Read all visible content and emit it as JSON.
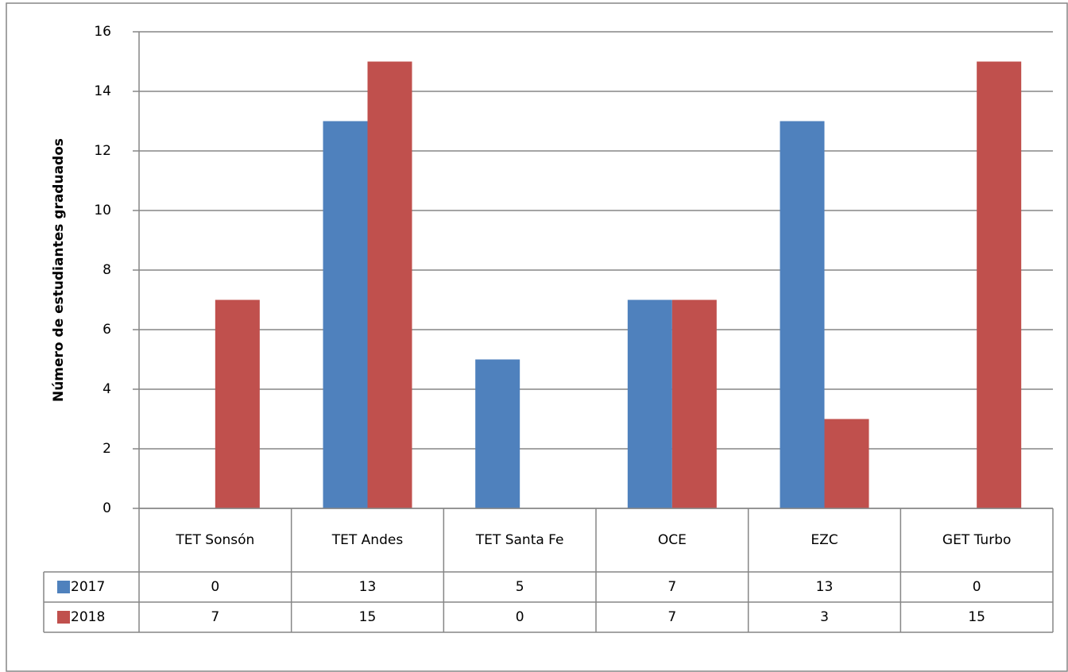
{
  "chart_data": {
    "type": "bar",
    "y_label": "Número de estudiantes graduados",
    "categories": [
      "TET Sonsón",
      "TET Andes",
      "TET Santa Fe",
      "OCE",
      "EZC",
      "GET Turbo"
    ],
    "series": [
      {
        "name": "2017",
        "color": "#4f81bd",
        "values": [
          0,
          13,
          5,
          7,
          13,
          0
        ]
      },
      {
        "name": "2018",
        "color": "#c0504d",
        "values": [
          7,
          15,
          0,
          7,
          3,
          15
        ]
      }
    ],
    "ylim": [
      0,
      16
    ],
    "yticks": [
      0,
      2,
      4,
      6,
      8,
      10,
      12,
      14,
      16
    ],
    "grid": true,
    "data_table": true
  }
}
